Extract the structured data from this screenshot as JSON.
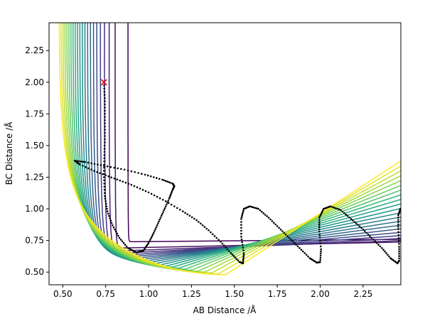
{
  "chart_data": {
    "type": "contour",
    "title": "",
    "xlabel": "AB Distance /Å",
    "ylabel": "BC Distance /Å",
    "xlim": [
      0.42,
      2.47
    ],
    "ylim": [
      0.4,
      2.47
    ],
    "xticks": [
      "0.50",
      "0.75",
      "1.00",
      "1.25",
      "1.50",
      "1.75",
      "2.00",
      "2.25"
    ],
    "yticks": [
      "0.50",
      "0.75",
      "1.00",
      "1.25",
      "1.50",
      "1.75",
      "2.00",
      "2.25"
    ],
    "grid": false,
    "colormap": [
      "#440154",
      "#482878",
      "#3e4989",
      "#31688e",
      "#26828e",
      "#1f9e89",
      "#35b779",
      "#6ece58",
      "#b5de2b",
      "#fde725"
    ],
    "start_marker": {
      "x": 0.74,
      "y": 2.0,
      "symbol": "x",
      "color": "#e00000"
    },
    "trajectory": [
      [
        0.74,
        2.0
      ],
      [
        0.745,
        1.85
      ],
      [
        0.745,
        1.7
      ],
      [
        0.745,
        1.55
      ],
      [
        0.742,
        1.4
      ],
      [
        0.74,
        1.25
      ],
      [
        0.745,
        1.1
      ],
      [
        0.76,
        0.98
      ],
      [
        0.79,
        0.87
      ],
      [
        0.83,
        0.77
      ],
      [
        0.88,
        0.69
      ],
      [
        0.93,
        0.655
      ],
      [
        0.97,
        0.67
      ],
      [
        1.0,
        0.73
      ],
      [
        1.03,
        0.81
      ],
      [
        1.06,
        0.9
      ],
      [
        1.09,
        0.99
      ],
      [
        1.12,
        1.08
      ],
      [
        1.14,
        1.15
      ],
      [
        1.15,
        1.18
      ],
      [
        1.14,
        1.2
      ],
      [
        1.08,
        1.23
      ],
      [
        0.98,
        1.27
      ],
      [
        0.86,
        1.31
      ],
      [
        0.74,
        1.34
      ],
      [
        0.63,
        1.37
      ],
      [
        0.57,
        1.38
      ],
      [
        0.6,
        1.35
      ],
      [
        0.7,
        1.29
      ],
      [
        0.8,
        1.24
      ],
      [
        0.9,
        1.19
      ],
      [
        1.0,
        1.13
      ],
      [
        1.1,
        1.06
      ],
      [
        1.2,
        0.98
      ],
      [
        1.28,
        0.91
      ],
      [
        1.35,
        0.83
      ],
      [
        1.42,
        0.74
      ],
      [
        1.48,
        0.65
      ],
      [
        1.53,
        0.58
      ],
      [
        1.55,
        0.57
      ],
      [
        1.555,
        0.65
      ],
      [
        1.54,
        0.78
      ],
      [
        1.54,
        0.92
      ],
      [
        1.555,
        1.0
      ],
      [
        1.59,
        1.02
      ],
      [
        1.64,
        1.0
      ],
      [
        1.7,
        0.93
      ],
      [
        1.76,
        0.85
      ],
      [
        1.82,
        0.77
      ],
      [
        1.88,
        0.69
      ],
      [
        1.94,
        0.61
      ],
      [
        1.98,
        0.575
      ],
      [
        2.0,
        0.58
      ],
      [
        2.005,
        0.68
      ],
      [
        1.995,
        0.82
      ],
      [
        1.995,
        0.93
      ],
      [
        2.02,
        1.0
      ],
      [
        2.06,
        1.02
      ],
      [
        2.12,
        0.99
      ],
      [
        2.18,
        0.92
      ],
      [
        2.24,
        0.85
      ],
      [
        2.3,
        0.77
      ],
      [
        2.36,
        0.69
      ],
      [
        2.41,
        0.61
      ],
      [
        2.45,
        0.57
      ],
      [
        2.46,
        0.59
      ],
      [
        2.46,
        0.7
      ],
      [
        2.455,
        0.84
      ],
      [
        2.455,
        0.95
      ],
      [
        2.47,
        1.01
      ]
    ]
  }
}
